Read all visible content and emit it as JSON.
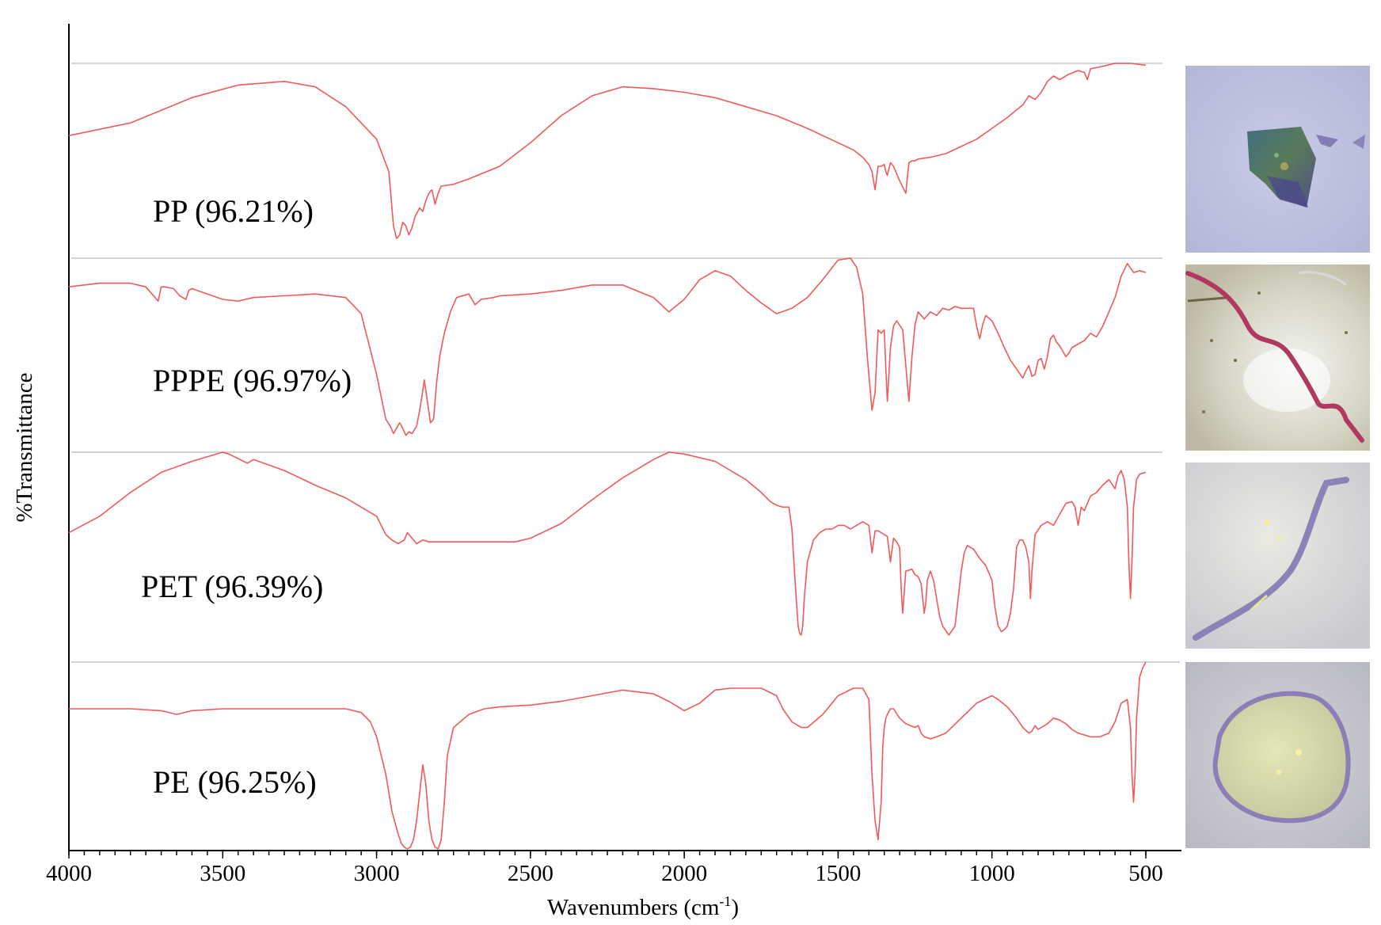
{
  "chart_data": {
    "type": "line",
    "xlabel": "Wavenumbers (cm",
    "xlabel_sup": "-1",
    "xlabel_end": ")",
    "ylabel": "%Transmittance",
    "xlim": [
      4000,
      500
    ],
    "xticks": [
      "4000",
      "3500",
      "3000",
      "2500",
      "2000",
      "1500",
      "1000",
      "500"
    ],
    "grid": false,
    "line_color": "#f05a5a",
    "series": [
      {
        "name": "PP (96.21%)",
        "image": "blue-green plastic fragment",
        "x": [
          4000,
          3800,
          3600,
          3450,
          3300,
          3200,
          3100,
          3000,
          2960,
          2945,
          2935,
          2925,
          2915,
          2905,
          2895,
          2885,
          2875,
          2860,
          2850,
          2840,
          2830,
          2820,
          2810,
          2800,
          2790,
          2750,
          2700,
          2600,
          2500,
          2400,
          2300,
          2200,
          2100,
          2000,
          1900,
          1800,
          1700,
          1600,
          1500,
          1450,
          1420,
          1400,
          1390,
          1380,
          1370,
          1360,
          1350,
          1345,
          1340,
          1330,
          1320,
          1300,
          1280,
          1270,
          1260,
          1250,
          1240,
          1200,
          1150,
          1100,
          1050,
          1000,
          950,
          900,
          880,
          860,
          840,
          820,
          800,
          780,
          750,
          720,
          700,
          690,
          680,
          650,
          600,
          550,
          500
        ],
        "y": [
          0.6,
          0.67,
          0.81,
          0.88,
          0.9,
          0.87,
          0.76,
          0.58,
          0.4,
          0.1,
          0.03,
          0.05,
          0.12,
          0.1,
          0.05,
          0.09,
          0.15,
          0.2,
          0.18,
          0.24,
          0.28,
          0.3,
          0.22,
          0.28,
          0.32,
          0.33,
          0.36,
          0.43,
          0.56,
          0.71,
          0.82,
          0.87,
          0.86,
          0.84,
          0.81,
          0.76,
          0.71,
          0.64,
          0.56,
          0.52,
          0.48,
          0.44,
          0.4,
          0.3,
          0.43,
          0.43,
          0.44,
          0.4,
          0.38,
          0.45,
          0.43,
          0.35,
          0.28,
          0.45,
          0.46,
          0.46,
          0.47,
          0.48,
          0.5,
          0.54,
          0.58,
          0.64,
          0.7,
          0.77,
          0.82,
          0.8,
          0.84,
          0.9,
          0.93,
          0.91,
          0.94,
          0.96,
          0.95,
          0.91,
          0.97,
          0.98,
          1.0,
          1.0,
          0.99
        ]
      },
      {
        "name": "PPPE (96.97%)",
        "image": "pink fiber",
        "x": [
          4000,
          3900,
          3800,
          3750,
          3710,
          3700,
          3690,
          3660,
          3640,
          3620,
          3610,
          3600,
          3550,
          3500,
          3450,
          3400,
          3300,
          3200,
          3100,
          3050,
          3000,
          2970,
          2955,
          2945,
          2935,
          2925,
          2915,
          2905,
          2895,
          2885,
          2870,
          2860,
          2850,
          2845,
          2840,
          2835,
          2825,
          2815,
          2805,
          2795,
          2780,
          2760,
          2740,
          2700,
          2680,
          2660,
          2620,
          2600,
          2500,
          2400,
          2300,
          2200,
          2100,
          2050,
          2000,
          1950,
          1900,
          1850,
          1800,
          1750,
          1700,
          1650,
          1600,
          1550,
          1500,
          1460,
          1440,
          1420,
          1405,
          1390,
          1380,
          1370,
          1360,
          1350,
          1345,
          1340,
          1330,
          1320,
          1310,
          1290,
          1280,
          1270,
          1260,
          1250,
          1240,
          1220,
          1200,
          1180,
          1160,
          1140,
          1120,
          1100,
          1060,
          1050,
          1040,
          1030,
          1020,
          1000,
          980,
          960,
          940,
          920,
          900,
          890,
          880,
          870,
          860,
          850,
          840,
          830,
          820,
          810,
          800,
          790,
          780,
          770,
          760,
          750,
          740,
          720,
          700,
          680,
          660,
          640,
          620,
          600,
          580,
          560,
          540,
          520,
          500
        ],
        "y": [
          0.84,
          0.86,
          0.86,
          0.84,
          0.76,
          0.84,
          0.84,
          0.83,
          0.79,
          0.77,
          0.82,
          0.83,
          0.8,
          0.77,
          0.76,
          0.78,
          0.79,
          0.8,
          0.78,
          0.69,
          0.35,
          0.1,
          0.06,
          0.02,
          0.05,
          0.08,
          0.05,
          0.01,
          0.03,
          0.02,
          0.06,
          0.15,
          0.26,
          0.32,
          0.26,
          0.2,
          0.08,
          0.1,
          0.3,
          0.45,
          0.58,
          0.7,
          0.78,
          0.8,
          0.74,
          0.77,
          0.78,
          0.79,
          0.8,
          0.82,
          0.85,
          0.85,
          0.78,
          0.7,
          0.77,
          0.88,
          0.93,
          0.9,
          0.82,
          0.75,
          0.69,
          0.72,
          0.78,
          0.88,
          0.99,
          1.0,
          0.95,
          0.8,
          0.45,
          0.15,
          0.25,
          0.6,
          0.58,
          0.6,
          0.38,
          0.2,
          0.5,
          0.62,
          0.65,
          0.6,
          0.4,
          0.2,
          0.45,
          0.63,
          0.7,
          0.66,
          0.7,
          0.68,
          0.72,
          0.71,
          0.73,
          0.72,
          0.72,
          0.62,
          0.55,
          0.63,
          0.68,
          0.65,
          0.58,
          0.5,
          0.43,
          0.38,
          0.33,
          0.37,
          0.4,
          0.34,
          0.35,
          0.43,
          0.44,
          0.38,
          0.45,
          0.55,
          0.57,
          0.53,
          0.51,
          0.48,
          0.45,
          0.47,
          0.5,
          0.52,
          0.54,
          0.58,
          0.56,
          0.62,
          0.7,
          0.78,
          0.9,
          0.97,
          0.92,
          0.93,
          0.92
        ]
      },
      {
        "name": "PET (96.39%)",
        "image": "purple fiber",
        "x": [
          4000,
          3900,
          3800,
          3700,
          3600,
          3500,
          3480,
          3420,
          3400,
          3300,
          3200,
          3100,
          3050,
          3000,
          2970,
          2950,
          2930,
          2910,
          2900,
          2890,
          2870,
          2850,
          2830,
          2800,
          2700,
          2600,
          2550,
          2500,
          2400,
          2300,
          2200,
          2150,
          2100,
          2050,
          2000,
          1900,
          1850,
          1800,
          1750,
          1720,
          1700,
          1680,
          1660,
          1650,
          1640,
          1630,
          1625,
          1620,
          1615,
          1610,
          1600,
          1580,
          1560,
          1540,
          1520,
          1500,
          1480,
          1460,
          1440,
          1420,
          1400,
          1390,
          1380,
          1370,
          1360,
          1340,
          1330,
          1320,
          1310,
          1300,
          1295,
          1290,
          1280,
          1260,
          1250,
          1240,
          1230,
          1220,
          1215,
          1210,
          1200,
          1190,
          1180,
          1170,
          1160,
          1140,
          1120,
          1110,
          1100,
          1090,
          1080,
          1060,
          1040,
          1020,
          1000,
          990,
          980,
          970,
          960,
          950,
          940,
          930,
          920,
          910,
          900,
          890,
          880,
          875,
          870,
          860,
          840,
          820,
          800,
          780,
          760,
          740,
          730,
          720,
          710,
          700,
          680,
          660,
          640,
          620,
          600,
          590,
          580,
          570,
          560,
          555,
          550,
          545,
          540,
          530,
          520,
          500
        ],
        "y": [
          0.56,
          0.65,
          0.78,
          0.89,
          0.95,
          1.0,
          0.99,
          0.94,
          0.96,
          0.9,
          0.82,
          0.75,
          0.7,
          0.65,
          0.55,
          0.52,
          0.5,
          0.52,
          0.56,
          0.54,
          0.5,
          0.52,
          0.51,
          0.51,
          0.51,
          0.51,
          0.51,
          0.53,
          0.61,
          0.74,
          0.86,
          0.91,
          0.96,
          1.0,
          0.99,
          0.95,
          0.9,
          0.85,
          0.78,
          0.73,
          0.71,
          0.7,
          0.7,
          0.58,
          0.3,
          0.05,
          0.01,
          0.0,
          0.05,
          0.2,
          0.4,
          0.52,
          0.56,
          0.58,
          0.58,
          0.6,
          0.6,
          0.58,
          0.6,
          0.62,
          0.6,
          0.45,
          0.57,
          0.57,
          0.56,
          0.54,
          0.4,
          0.53,
          0.51,
          0.48,
          0.25,
          0.12,
          0.35,
          0.36,
          0.33,
          0.32,
          0.28,
          0.12,
          0.18,
          0.3,
          0.35,
          0.3,
          0.2,
          0.1,
          0.05,
          0.0,
          0.05,
          0.2,
          0.35,
          0.45,
          0.49,
          0.47,
          0.42,
          0.38,
          0.3,
          0.15,
          0.05,
          0.02,
          0.03,
          0.05,
          0.12,
          0.25,
          0.48,
          0.52,
          0.52,
          0.48,
          0.4,
          0.2,
          0.35,
          0.55,
          0.6,
          0.62,
          0.6,
          0.66,
          0.72,
          0.73,
          0.7,
          0.6,
          0.7,
          0.68,
          0.76,
          0.78,
          0.82,
          0.85,
          0.8,
          0.87,
          0.9,
          0.85,
          0.7,
          0.4,
          0.2,
          0.4,
          0.7,
          0.85,
          0.88,
          0.89
        ]
      },
      {
        "name": "PE (96.25%)",
        "image": "translucent plastic fragment",
        "x": [
          4000,
          3800,
          3700,
          3650,
          3600,
          3500,
          3400,
          3300,
          3200,
          3100,
          3050,
          3020,
          3000,
          2970,
          2950,
          2930,
          2920,
          2910,
          2900,
          2890,
          2880,
          2870,
          2860,
          2850,
          2840,
          2830,
          2820,
          2810,
          2800,
          2790,
          2780,
          2770,
          2750,
          2700,
          2650,
          2600,
          2500,
          2400,
          2300,
          2200,
          2100,
          2050,
          2000,
          1950,
          1900,
          1850,
          1800,
          1750,
          1700,
          1680,
          1650,
          1620,
          1600,
          1550,
          1500,
          1450,
          1420,
          1400,
          1390,
          1380,
          1370,
          1360,
          1355,
          1350,
          1345,
          1340,
          1330,
          1320,
          1300,
          1280,
          1250,
          1240,
          1230,
          1220,
          1200,
          1180,
          1150,
          1100,
          1050,
          1000,
          980,
          950,
          920,
          900,
          880,
          870,
          860,
          850,
          820,
          800,
          780,
          760,
          740,
          720,
          700,
          680,
          650,
          620,
          600,
          580,
          560,
          550,
          545,
          540,
          535,
          530,
          520,
          510,
          500
        ],
        "y": [
          0.75,
          0.75,
          0.74,
          0.72,
          0.74,
          0.75,
          0.75,
          0.75,
          0.75,
          0.75,
          0.73,
          0.68,
          0.6,
          0.4,
          0.2,
          0.08,
          0.03,
          0.01,
          0.0,
          0.01,
          0.05,
          0.15,
          0.3,
          0.45,
          0.35,
          0.15,
          0.05,
          0.01,
          0.0,
          0.05,
          0.25,
          0.5,
          0.65,
          0.72,
          0.75,
          0.76,
          0.77,
          0.79,
          0.82,
          0.85,
          0.83,
          0.79,
          0.74,
          0.78,
          0.85,
          0.86,
          0.86,
          0.86,
          0.82,
          0.75,
          0.68,
          0.65,
          0.65,
          0.72,
          0.82,
          0.86,
          0.86,
          0.8,
          0.4,
          0.15,
          0.05,
          0.25,
          0.55,
          0.65,
          0.7,
          0.72,
          0.75,
          0.75,
          0.7,
          0.67,
          0.65,
          0.66,
          0.62,
          0.6,
          0.59,
          0.6,
          0.62,
          0.7,
          0.78,
          0.82,
          0.8,
          0.76,
          0.7,
          0.65,
          0.62,
          0.63,
          0.66,
          0.64,
          0.67,
          0.7,
          0.69,
          0.67,
          0.64,
          0.62,
          0.61,
          0.6,
          0.6,
          0.62,
          0.68,
          0.78,
          0.8,
          0.65,
          0.4,
          0.25,
          0.4,
          0.7,
          0.92,
          0.97,
          1.0
        ]
      }
    ]
  }
}
